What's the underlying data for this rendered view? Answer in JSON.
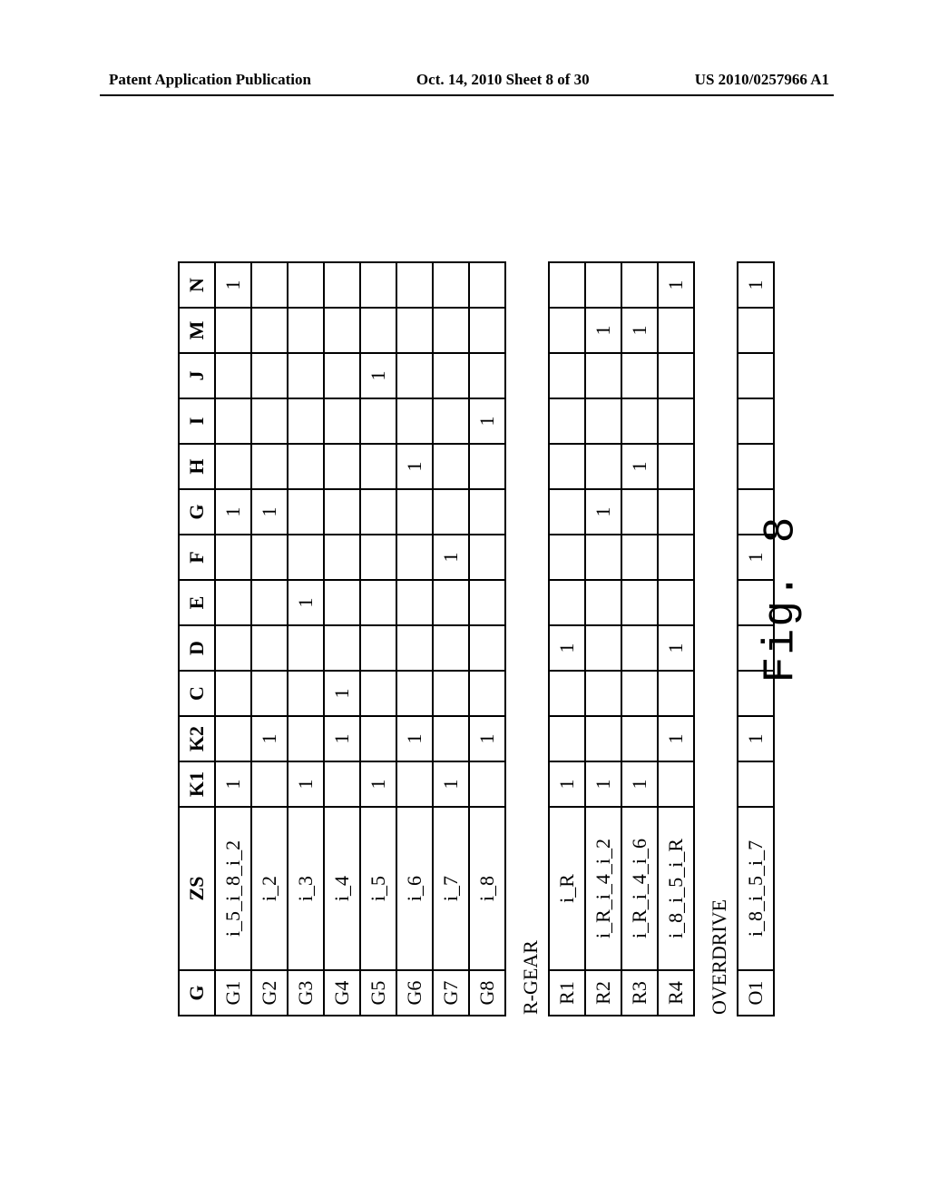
{
  "header": {
    "left": "Patent Application Publication",
    "center": "Oct. 14, 2010  Sheet 8 of 30",
    "right": "US 2010/0257966 A1"
  },
  "figure_label": "Fig. 8",
  "columns": [
    "G",
    "ZS",
    "K1",
    "K2",
    "C",
    "D",
    "E",
    "F",
    "G",
    "H",
    "I",
    "J",
    "M",
    "N"
  ],
  "forward": {
    "rows": [
      "G1",
      "G2",
      "G3",
      "G4",
      "G5",
      "G6",
      "G7",
      "G8"
    ],
    "zs": [
      "i_5_i_8_i_2",
      "i_2",
      "i_3",
      "i_4",
      "i_5",
      "i_6",
      "i_7",
      "i_8"
    ],
    "grid": [
      [
        "1",
        "",
        "",
        "",
        "",
        "",
        "1",
        "",
        "",
        "",
        "",
        "1"
      ],
      [
        "",
        "1",
        "",
        "",
        "",
        "",
        "1",
        "",
        "",
        "",
        "",
        ""
      ],
      [
        "1",
        "",
        "",
        "",
        "1",
        "",
        "",
        "",
        "",
        "",
        "",
        ""
      ],
      [
        "",
        "1",
        "1",
        "",
        "",
        "",
        "",
        "",
        "",
        "",
        "",
        ""
      ],
      [
        "1",
        "",
        "",
        "",
        "",
        "",
        "",
        "",
        "",
        "1",
        "",
        ""
      ],
      [
        "",
        "1",
        "",
        "",
        "",
        "",
        "",
        "1",
        "",
        "",
        "",
        ""
      ],
      [
        "1",
        "",
        "",
        "",
        "",
        "1",
        "",
        "",
        "",
        "",
        "",
        ""
      ],
      [
        "",
        "1",
        "",
        "",
        "",
        "",
        "",
        "",
        "1",
        "",
        "",
        ""
      ]
    ]
  },
  "rgear": {
    "label": "R-GEAR",
    "rows": [
      "R1",
      "R2",
      "R3",
      "R4"
    ],
    "zs": [
      "i_R",
      "i_R_i_4_i_2",
      "i_R_i_4_i_6",
      "i_8_i_5_i_R"
    ],
    "grid": [
      [
        "1",
        "",
        "",
        "1",
        "",
        "",
        "",
        "",
        "",
        "",
        "",
        ""
      ],
      [
        "1",
        "",
        "",
        "",
        "",
        "",
        "1",
        "",
        "",
        "",
        "1",
        ""
      ],
      [
        "1",
        "",
        "",
        "",
        "",
        "",
        "",
        "1",
        "",
        "",
        "1",
        ""
      ],
      [
        "",
        "1",
        "",
        "1",
        "",
        "",
        "",
        "",
        "",
        "",
        "",
        "1"
      ]
    ]
  },
  "overdrive": {
    "label": "OVERDRIVE",
    "rows": [
      "O1"
    ],
    "zs": [
      "i_8_i_5_i_7"
    ],
    "grid": [
      [
        "",
        "1",
        "",
        "",
        "",
        "1",
        "",
        "",
        "",
        "",
        "",
        "1"
      ]
    ]
  }
}
